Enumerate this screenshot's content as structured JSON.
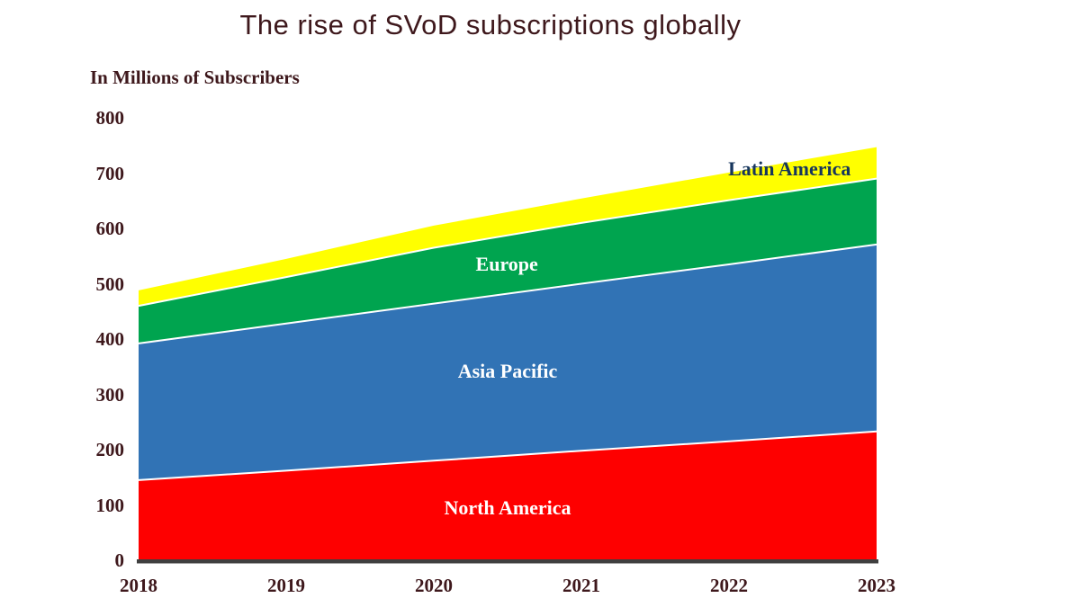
{
  "chart_data": {
    "type": "area",
    "stacked": true,
    "title": "The rise of SVoD subscriptions globally",
    "ylabel": "In Millions of Subscribers",
    "xlabel": "",
    "categories": [
      "2018",
      "2019",
      "2020",
      "2021",
      "2022",
      "2023"
    ],
    "series": [
      {
        "name": "North America",
        "color": "#fe0000",
        "label_color": "#ffffff",
        "label_x_frac": 0.5,
        "label_y_offset": 0,
        "values": [
          145,
          162,
          180,
          198,
          215,
          233
        ]
      },
      {
        "name": "Asia Pacific",
        "color": "#3173b5",
        "label_color": "#ffffff",
        "label_x_frac": 0.5,
        "label_y_offset": -4,
        "values": [
          247,
          266,
          284,
          302,
          320,
          338
        ]
      },
      {
        "name": "Europe",
        "color": "#00a44f",
        "label_color": "#ffffff",
        "label_x_frac": 0.499,
        "label_y_offset": 0,
        "values": [
          68,
          84,
          101,
          110,
          116,
          119
        ]
      },
      {
        "name": "Latin America",
        "color": "#ffff00",
        "label_color": "#17365d",
        "label_x_frac": 0.882,
        "label_y_offset": -9,
        "values": [
          28,
          33,
          40,
          44,
          50,
          57
        ]
      }
    ],
    "ylim": [
      0,
      800
    ],
    "yticks": [
      0,
      100,
      200,
      300,
      400,
      500,
      600,
      700,
      800
    ],
    "grid": false,
    "legend": "labels-inside-areas",
    "separator_color": "#ffffff",
    "axis_line_color": "#3f3f3f",
    "text_color": "#3e181c",
    "background": "#ffffff"
  }
}
